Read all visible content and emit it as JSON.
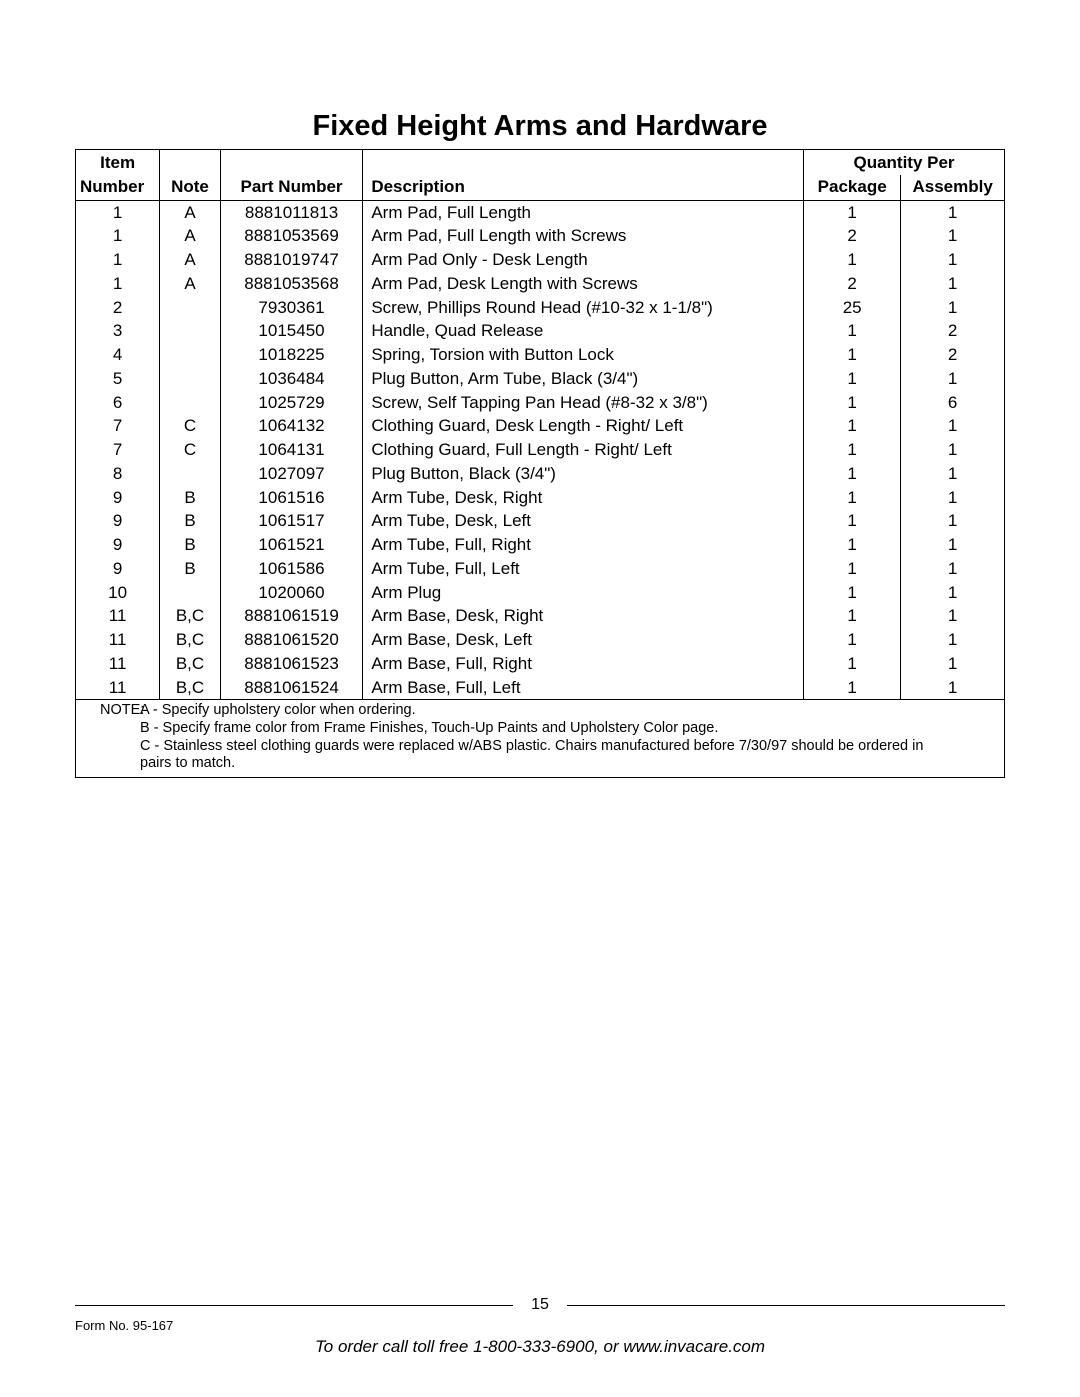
{
  "title": "Fixed Height Arms and Hardware",
  "headers": {
    "item_top": "Item",
    "item_bottom": "Number",
    "note": "Note",
    "part_number": "Part Number",
    "description": "Description",
    "qty_per": "Quantity Per",
    "package": "Package",
    "assembly": "Assembly"
  },
  "rows": [
    {
      "item": "1",
      "note": "A",
      "part": "8881011813",
      "desc": "Arm Pad, Full Length",
      "pkg": "1",
      "asm": "1"
    },
    {
      "item": "1",
      "note": "A",
      "part": "8881053569",
      "desc": "Arm Pad, Full Length with Screws",
      "pkg": "2",
      "asm": "1"
    },
    {
      "item": "1",
      "note": "A",
      "part": "8881019747",
      "desc": "Arm Pad Only - Desk Length",
      "pkg": "1",
      "asm": "1"
    },
    {
      "item": "1",
      "note": "A",
      "part": "8881053568",
      "desc": "Arm Pad, Desk Length with Screws",
      "pkg": "2",
      "asm": "1"
    },
    {
      "item": "2",
      "note": "",
      "part": "7930361",
      "desc": "Screw, Phillips Round Head (#10-32 x 1-1/8\")",
      "pkg": "25",
      "asm": "1"
    },
    {
      "item": "3",
      "note": "",
      "part": "1015450",
      "desc": "Handle, Quad Release",
      "pkg": "1",
      "asm": "2"
    },
    {
      "item": "4",
      "note": "",
      "part": "1018225",
      "desc": "Spring, Torsion with Button Lock",
      "pkg": "1",
      "asm": "2"
    },
    {
      "item": "5",
      "note": "",
      "part": "1036484",
      "desc": "Plug Button, Arm Tube, Black (3/4\")",
      "pkg": "1",
      "asm": "1"
    },
    {
      "item": "6",
      "note": "",
      "part": "1025729",
      "desc": "Screw, Self Tapping Pan Head (#8-32 x 3/8\")",
      "pkg": "1",
      "asm": "6"
    },
    {
      "item": "7",
      "note": "C",
      "part": "1064132",
      "desc": "Clothing Guard, Desk Length - Right/ Left",
      "pkg": "1",
      "asm": "1"
    },
    {
      "item": "7",
      "note": "C",
      "part": "1064131",
      "desc": "Clothing Guard, Full Length - Right/ Left",
      "pkg": "1",
      "asm": "1"
    },
    {
      "item": "8",
      "note": "",
      "part": "1027097",
      "desc": "Plug Button, Black (3/4\")",
      "pkg": "1",
      "asm": "1"
    },
    {
      "item": "9",
      "note": "B",
      "part": "1061516",
      "desc": "Arm Tube, Desk, Right",
      "pkg": "1",
      "asm": "1"
    },
    {
      "item": "9",
      "note": "B",
      "part": "1061517",
      "desc": "Arm Tube, Desk, Left",
      "pkg": "1",
      "asm": "1"
    },
    {
      "item": "9",
      "note": "B",
      "part": "1061521",
      "desc": "Arm Tube, Full, Right",
      "pkg": "1",
      "asm": "1"
    },
    {
      "item": "9",
      "note": "B",
      "part": "1061586",
      "desc": "Arm Tube, Full, Left",
      "pkg": "1",
      "asm": "1"
    },
    {
      "item": "10",
      "note": "",
      "part": "1020060",
      "desc": "Arm Plug",
      "pkg": "1",
      "asm": "1"
    },
    {
      "item": "11",
      "note": "B,C",
      "part": "8881061519",
      "desc": "Arm Base, Desk, Right",
      "pkg": "1",
      "asm": "1"
    },
    {
      "item": "11",
      "note": "B,C",
      "part": "8881061520",
      "desc": "Arm Base, Desk, Left",
      "pkg": "1",
      "asm": "1"
    },
    {
      "item": "11",
      "note": "B,C",
      "part": "8881061523",
      "desc": "Arm Base, Full, Right",
      "pkg": "1",
      "asm": "1"
    },
    {
      "item": "11",
      "note": "B,C",
      "part": "8881061524",
      "desc": "Arm Base, Full, Left",
      "pkg": "1",
      "asm": "1"
    }
  ],
  "notes": {
    "label": "NOTE:",
    "lines": [
      "A - Specify upholstery color when ordering.",
      "B - Specify frame color from Frame Finishes, Touch-Up Paints and Upholstery Color page.",
      "C - Stainless steel clothing guards were replaced w/ABS plastic. Chairs manufactured before 7/30/97 should be ordered in",
      "pairs to match."
    ]
  },
  "footer": {
    "page_number": "15",
    "form_no": "Form No. 95-167",
    "order_line": "To order call toll free 1-800-333-6900, or www.invacare.com"
  }
}
